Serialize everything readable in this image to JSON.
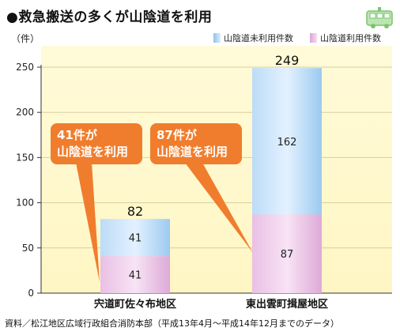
{
  "title": "●救急搬送の多くが山陰道を利用",
  "unit": "（件）",
  "legend": [
    {
      "label": "山陰道未利用件数",
      "color": "#a9d0f5"
    },
    {
      "label": "山陰道利用件数",
      "color": "#e7b9e2"
    }
  ],
  "callouts": [
    {
      "line1": "41件が",
      "line2": "山陰道を利用"
    },
    {
      "line1": "87件が",
      "line2": "山陰道を利用"
    }
  ],
  "footer": "資料／松江地区広域行政組合消防本部（平成13年4月〜平成14年12月までのデータ）",
  "icon": "ambulance-icon",
  "chart_data": {
    "type": "bar",
    "stacked": true,
    "categories": [
      "宍道町佐々布地区",
      "東出雲町揖屋地区"
    ],
    "series": [
      {
        "name": "山陰道利用件数",
        "values": [
          41,
          87
        ],
        "color": "#e7b9e2"
      },
      {
        "name": "山陰道未利用件数",
        "values": [
          41,
          162
        ],
        "color": "#a9d0f5"
      }
    ],
    "totals": [
      82,
      249
    ],
    "ylim": [
      0,
      250
    ],
    "yticks": [
      0,
      50,
      100,
      150,
      200,
      250
    ],
    "ylabel": "（件）",
    "legend_position": "top-right",
    "grid": true
  }
}
